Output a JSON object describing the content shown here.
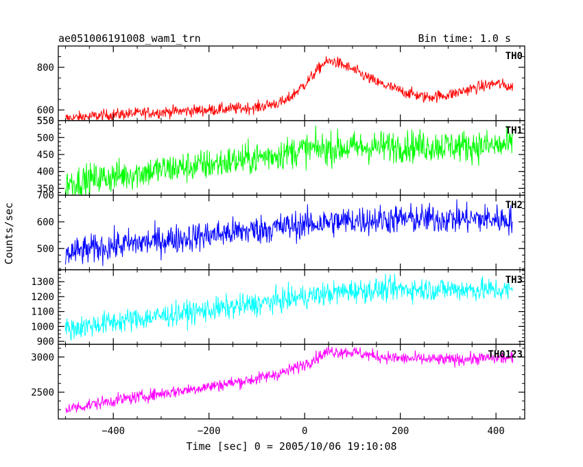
{
  "figure": {
    "title_left": "ae051006191008_wam1_trn",
    "title_right": "Bin time: 1.0 s",
    "xlabel": "Time [sec] 0 = 2005/10/06 19:10:08",
    "ylabel": "Counts/sec"
  },
  "chart_data": {
    "type": "line",
    "xlim": [
      -515,
      460
    ],
    "x_ticks": [
      -400,
      -200,
      0,
      200,
      400
    ],
    "x_range": [
      -500,
      435
    ],
    "grid": false,
    "panels": [
      {
        "name": "TH0",
        "color": "#ff0000",
        "ylim": [
          550,
          900
        ],
        "y_ticks": [
          600,
          800
        ],
        "y_tick_labels": [
          "600",
          "800"
        ],
        "extra_y_labels": [
          "550"
        ],
        "trend": [
          [
            -500,
            560
          ],
          [
            -400,
            578
          ],
          [
            -300,
            590
          ],
          [
            -200,
            600
          ],
          [
            -100,
            612
          ],
          [
            -40,
            640
          ],
          [
            0,
            720
          ],
          [
            40,
            820
          ],
          [
            60,
            830
          ],
          [
            100,
            790
          ],
          [
            150,
            730
          ],
          [
            200,
            690
          ],
          [
            250,
            660
          ],
          [
            300,
            670
          ],
          [
            350,
            700
          ],
          [
            400,
            725
          ],
          [
            435,
            705
          ]
        ],
        "noise": 14
      },
      {
        "name": "TH1",
        "color": "#00ff00",
        "ylim": [
          330,
          550
        ],
        "y_ticks": [
          350,
          400,
          450,
          500
        ],
        "y_tick_labels": [
          "350",
          "400",
          "450",
          "500"
        ],
        "extra_y_labels": [
          "550"
        ],
        "trend": [
          [
            -500,
            365
          ],
          [
            -400,
            385
          ],
          [
            -300,
            405
          ],
          [
            -200,
            420
          ],
          [
            -100,
            440
          ],
          [
            0,
            465
          ],
          [
            100,
            470
          ],
          [
            200,
            475
          ],
          [
            300,
            475
          ],
          [
            400,
            475
          ],
          [
            435,
            478
          ]
        ],
        "noise": 24
      },
      {
        "name": "TH2",
        "color": "#0000ff",
        "ylim": [
          420,
          700
        ],
        "y_ticks": [
          500,
          600
        ],
        "y_tick_labels": [
          "500",
          "600"
        ],
        "extra_y_labels": [
          "700"
        ],
        "trend": [
          [
            -500,
            480
          ],
          [
            -400,
            510
          ],
          [
            -300,
            530
          ],
          [
            -200,
            550
          ],
          [
            -100,
            570
          ],
          [
            0,
            590
          ],
          [
            100,
            605
          ],
          [
            200,
            610
          ],
          [
            300,
            612
          ],
          [
            400,
            610
          ],
          [
            435,
            608
          ]
        ],
        "noise": 28
      },
      {
        "name": "TH3",
        "color": "#00ffff",
        "ylim": [
          880,
          1380
        ],
        "y_ticks": [
          900,
          1000,
          1100,
          1200,
          1300
        ],
        "y_tick_labels": [
          "900",
          "1000",
          "1100",
          "1200",
          "1300"
        ],
        "extra_y_labels": [],
        "trend": [
          [
            -500,
            980
          ],
          [
            -400,
            1030
          ],
          [
            -300,
            1070
          ],
          [
            -200,
            1110
          ],
          [
            -100,
            1150
          ],
          [
            0,
            1200
          ],
          [
            100,
            1240
          ],
          [
            200,
            1250
          ],
          [
            300,
            1250
          ],
          [
            400,
            1245
          ],
          [
            435,
            1240
          ]
        ],
        "noise": 40
      },
      {
        "name": "TH0123",
        "color": "#ff00ff",
        "ylim": [
          2120,
          3180
        ],
        "y_ticks": [
          2500,
          3000
        ],
        "y_tick_labels": [
          "2500",
          "3000"
        ],
        "extra_y_labels": [],
        "trend": [
          [
            -500,
            2260
          ],
          [
            -400,
            2380
          ],
          [
            -300,
            2480
          ],
          [
            -200,
            2580
          ],
          [
            -100,
            2690
          ],
          [
            -40,
            2790
          ],
          [
            0,
            2900
          ],
          [
            50,
            3080
          ],
          [
            100,
            3070
          ],
          [
            150,
            3010
          ],
          [
            200,
            2980
          ],
          [
            300,
            2960
          ],
          [
            400,
            2990
          ],
          [
            435,
            2980
          ]
        ],
        "noise": 45
      }
    ]
  }
}
